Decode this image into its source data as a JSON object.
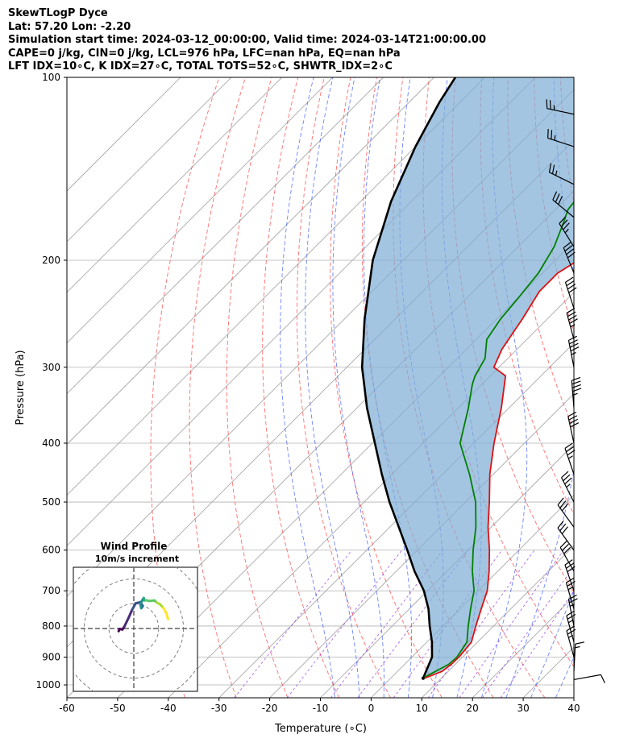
{
  "header": {
    "line1": "SkewTLogP Dyce",
    "line2": "Lat: 57.20   Lon: -2.20",
    "line3": "Simulation start time: 2024-03-12_00:00:00, Valid time: 2024-03-14T21:00:00.00",
    "line4": "CAPE=0 j/kg, CIN=0 j/kg, LCL=976 hPa, LFC=nan hPa, EQ=nan hPa",
    "line5": "LFT IDX=10∘C, K IDX=27∘C, TOTAL TOTS=52∘C, SHWTR_IDX=2∘C"
  },
  "chart_data": {
    "type": "line",
    "title": "",
    "xlabel": "Temperature (∘C)",
    "ylabel": "Pressure (hPa)",
    "xlim": [
      -60,
      40
    ],
    "ylim": [
      1050,
      100
    ],
    "y_scale": "log",
    "grid": true,
    "x_ticks": [
      -60,
      -50,
      -40,
      -30,
      -20,
      -10,
      0,
      10,
      20,
      30,
      40
    ],
    "y_ticks": [
      1000,
      900,
      800,
      700,
      600,
      500,
      400,
      300,
      200,
      100
    ],
    "series": [
      {
        "name": "",
        "kind": "temperature",
        "color": "#e01010",
        "points": [
          [
            6.7,
            975
          ],
          [
            8.8,
            950
          ],
          [
            9.2,
            925
          ],
          [
            9.3,
            900
          ],
          [
            8.8,
            850
          ],
          [
            6.5,
            800
          ],
          [
            4.2,
            750
          ],
          [
            1.8,
            700
          ],
          [
            -1.7,
            650
          ],
          [
            -5.8,
            600
          ],
          [
            -10.6,
            550
          ],
          [
            -15.3,
            500
          ],
          [
            -20.7,
            450
          ],
          [
            -26.0,
            400
          ],
          [
            -31.5,
            350
          ],
          [
            -37.0,
            310
          ],
          [
            -41.0,
            300
          ],
          [
            -43.0,
            280
          ],
          [
            -44.9,
            250
          ],
          [
            -47.0,
            225
          ],
          [
            -47.0,
            210
          ],
          [
            -45.5,
            200
          ],
          [
            -44.0,
            180
          ],
          [
            -41.5,
            160
          ],
          [
            -39.6,
            140
          ],
          [
            -38.8,
            130
          ],
          [
            -38.5,
            120
          ],
          [
            -38.6,
            110
          ],
          [
            -38.8,
            100
          ]
        ]
      },
      {
        "name": "",
        "kind": "dewpoint",
        "color": "#008000",
        "points": [
          [
            6.3,
            975
          ],
          [
            7.5,
            950
          ],
          [
            8.7,
            925
          ],
          [
            8.9,
            900
          ],
          [
            7.9,
            850
          ],
          [
            5.0,
            800
          ],
          [
            2.1,
            750
          ],
          [
            -0.8,
            700
          ],
          [
            -5.0,
            650
          ],
          [
            -9.0,
            600
          ],
          [
            -13.0,
            550
          ],
          [
            -18.0,
            500
          ],
          [
            -24.7,
            450
          ],
          [
            -32.7,
            400
          ],
          [
            -38.0,
            350
          ],
          [
            -41.9,
            320
          ],
          [
            -43.0,
            310
          ],
          [
            -44.5,
            290
          ],
          [
            -47.9,
            270
          ],
          [
            -49.2,
            250
          ],
          [
            -49.9,
            230
          ],
          [
            -50.8,
            210
          ],
          [
            -52.9,
            190
          ],
          [
            -55.5,
            175
          ],
          [
            -57.5,
            165
          ],
          [
            -58.5,
            150
          ],
          [
            -57.5,
            130
          ],
          [
            -56.8,
            115
          ],
          [
            -55.8,
            100
          ]
        ]
      },
      {
        "name": "",
        "kind": "parcel",
        "color": "#000000",
        "points": [
          [
            6.4,
            975
          ],
          [
            4.0,
            900
          ],
          [
            1.0,
            850
          ],
          [
            -2.6,
            800
          ],
          [
            -6.2,
            750
          ],
          [
            -10.7,
            700
          ],
          [
            -16.4,
            650
          ],
          [
            -22.0,
            600
          ],
          [
            -28.2,
            550
          ],
          [
            -35.0,
            500
          ],
          [
            -42.0,
            450
          ],
          [
            -49.5,
            400
          ],
          [
            -58.0,
            350
          ],
          [
            -67.0,
            300
          ],
          [
            -76.0,
            250
          ],
          [
            -86.0,
            200
          ],
          [
            -94.0,
            160
          ],
          [
            -100.0,
            130
          ],
          [
            -104.0,
            110
          ],
          [
            -105.8,
            100
          ]
        ]
      }
    ],
    "wind_barbs": [
      {
        "p": 980,
        "u": -6.1,
        "v": -1.1
      },
      {
        "p": 950,
        "u": -0.4,
        "v": -7.8
      },
      {
        "p": 900,
        "u": 3.6,
        "v": -13.1
      },
      {
        "p": 850,
        "u": 3.7,
        "v": -13.3
      },
      {
        "p": 800,
        "u": 2.7,
        "v": -13.6
      },
      {
        "p": 750,
        "u": 4.0,
        "v": -13.7
      },
      {
        "p": 700,
        "u": 5.1,
        "v": -14.8
      },
      {
        "p": 650,
        "u": 7.8,
        "v": -13.7
      },
      {
        "p": 600,
        "u": 9.5,
        "v": -13.1
      },
      {
        "p": 550,
        "u": 10.2,
        "v": -14.1
      },
      {
        "p": 500,
        "u": 8.3,
        "v": -16.3
      },
      {
        "p": 450,
        "u": 6.4,
        "v": -18.7
      },
      {
        "p": 400,
        "u": 4.6,
        "v": -21.1
      },
      {
        "p": 350,
        "u": 2.0,
        "v": -24.8
      },
      {
        "p": 300,
        "u": 4.8,
        "v": -24.5
      },
      {
        "p": 270,
        "u": 6.2,
        "v": -23.0
      },
      {
        "p": 240,
        "u": 7.0,
        "v": -21.5
      },
      {
        "p": 210,
        "u": 7.8,
        "v": -19.2
      },
      {
        "p": 190,
        "u": 10.2,
        "v": -16.2
      },
      {
        "p": 170,
        "u": 12.4,
        "v": -10.3
      },
      {
        "p": 150,
        "u": 13.5,
        "v": -6.6
      },
      {
        "p": 130,
        "u": 14.5,
        "v": -4.7
      },
      {
        "p": 115,
        "u": 15.0,
        "v": -3.2
      }
    ],
    "hodograph": {
      "title": "Wind Profile",
      "subtitle": "10m/s increment",
      "xlim": [
        -25,
        25
      ],
      "ylim": [
        -25,
        25
      ],
      "ring_radii": [
        10,
        20,
        30
      ],
      "u": [
        -6.1,
        -5.8,
        -4.6,
        -3.8,
        -2.1,
        -0.6,
        0.8,
        2.7,
        3.6,
        3.5,
        3.0,
        2.7,
        3.1,
        4.0,
        4.2,
        4.9,
        6.2,
        8.3,
        9.2,
        10.6,
        11.9,
        13.1,
        13.8
      ],
      "v": [
        -1.1,
        -0.2,
        -0.4,
        0.8,
        4.3,
        7.7,
        10.2,
        10.6,
        9.1,
        8.8,
        8.2,
        9.5,
        10.9,
        12.3,
        11.3,
        11.4,
        11.1,
        11.3,
        10.5,
        9.7,
        8.3,
        6.2,
        3.8
      ],
      "colormap": "viridis"
    },
    "skew": {
      "dry_adiabats_theta_C": [
        -40,
        -30,
        -20,
        -10,
        0,
        10,
        20,
        30,
        40,
        50,
        60,
        70,
        80,
        90,
        100,
        110,
        120,
        130,
        140,
        150,
        160,
        170,
        180,
        190
      ],
      "moist_adiabats_C": [
        -10,
        -5,
        0,
        5,
        10,
        15,
        20,
        25,
        30,
        35,
        40,
        45
      ],
      "mixing_ratios": [
        0.4,
        1,
        2,
        3,
        5,
        8,
        12,
        16,
        20
      ]
    }
  }
}
